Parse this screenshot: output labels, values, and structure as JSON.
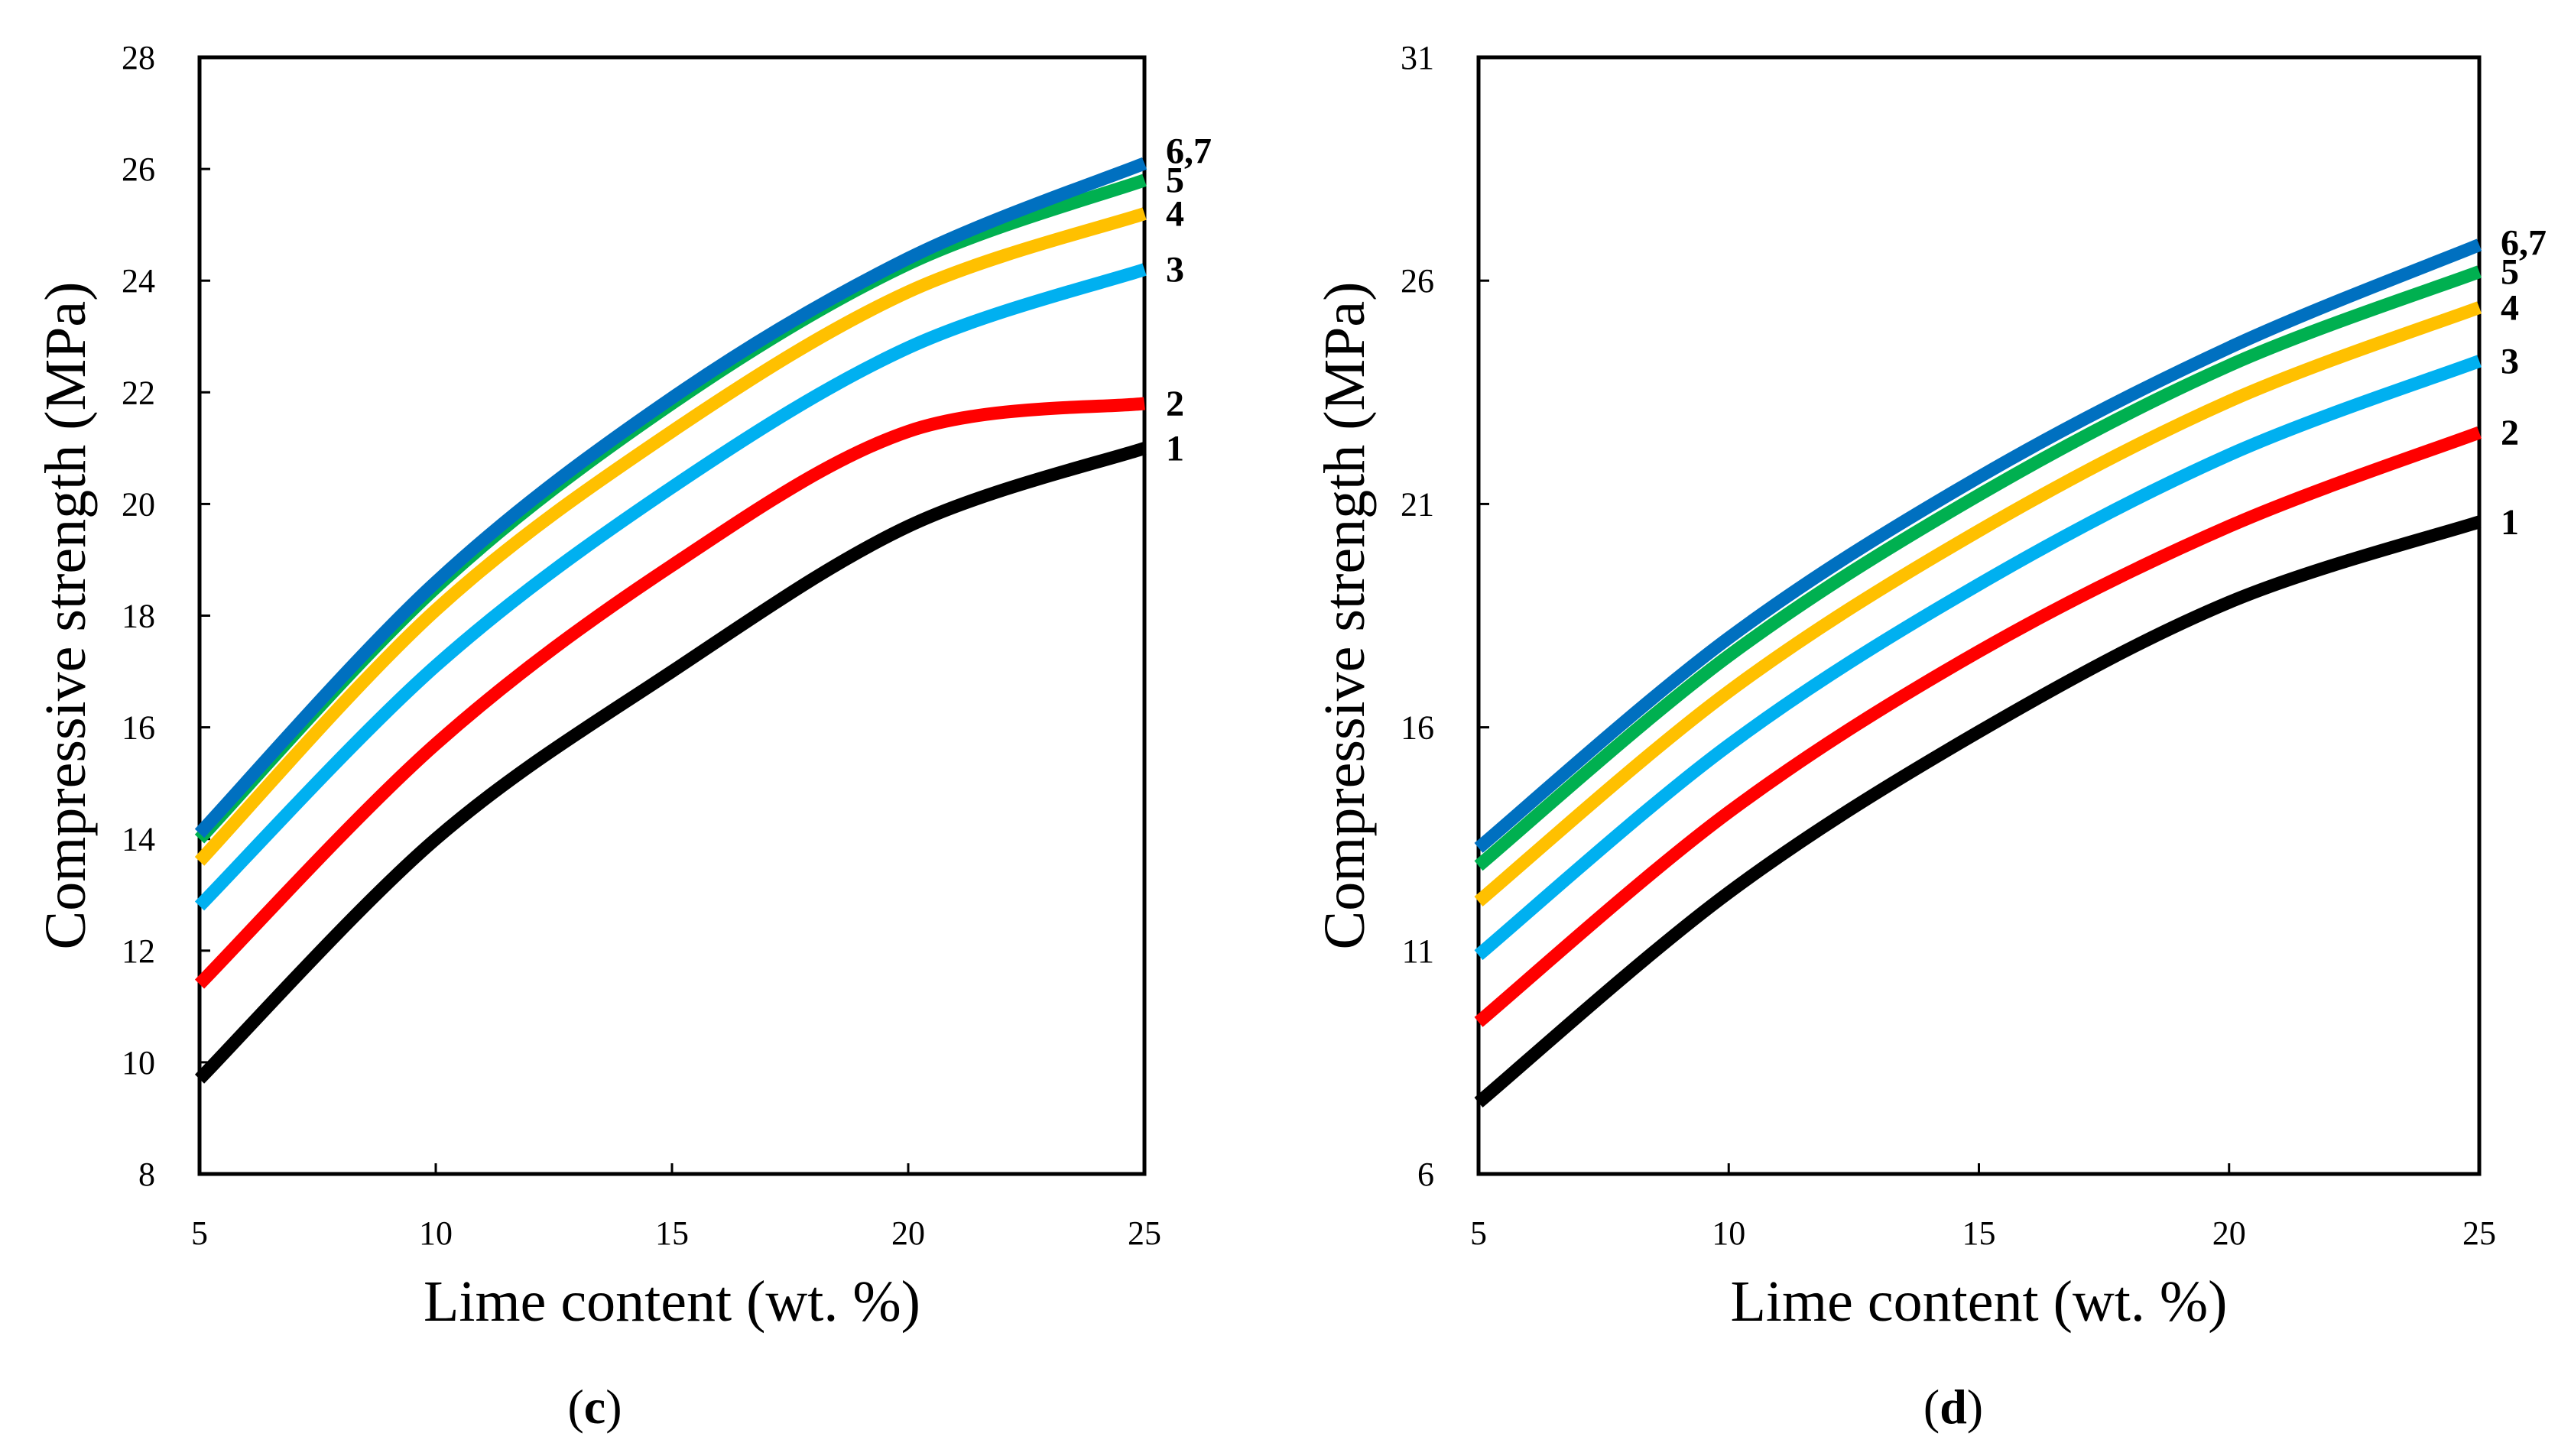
{
  "chart_data": [
    {
      "type": "line",
      "panel_label": "c",
      "xlabel": "Lime content (wt. %)",
      "ylabel": "Compressive strength (MPa)",
      "xlim": [
        5,
        25
      ],
      "ylim": [
        8,
        28
      ],
      "x_ticks": [
        5,
        10,
        15,
        20,
        25
      ],
      "y_ticks": [
        8,
        10,
        12,
        14,
        16,
        18,
        20,
        22,
        24,
        26,
        28
      ],
      "grid": false,
      "x": [
        5,
        10,
        15,
        20,
        25
      ],
      "series": [
        {
          "end_label": "1",
          "color": "#000000",
          "values": [
            9.7,
            14.0,
            17.0,
            19.6,
            21.0
          ]
        },
        {
          "end_label": "2",
          "color": "#ff0000",
          "values": [
            11.4,
            15.7,
            18.9,
            21.3,
            21.8
          ]
        },
        {
          "end_label": "3",
          "color": "#00b0f0",
          "values": [
            12.8,
            17.1,
            20.3,
            22.8,
            24.2
          ]
        },
        {
          "end_label": "4",
          "color": "#ffc000",
          "values": [
            13.6,
            18.1,
            21.3,
            23.8,
            25.2
          ]
        },
        {
          "end_label": "5",
          "color": "#00b050",
          "values": [
            14.0,
            18.5,
            21.8,
            24.3,
            25.8
          ]
        },
        {
          "end_label": "6,7",
          "color": "#0070c0",
          "values": [
            14.1,
            18.6,
            21.9,
            24.4,
            26.1
          ]
        }
      ]
    },
    {
      "type": "line",
      "panel_label": "d",
      "xlabel": "Lime content (wt. %)",
      "ylabel": "Compressive strength (MPa)",
      "xlim": [
        5,
        25
      ],
      "ylim": [
        6,
        31
      ],
      "x_ticks": [
        5,
        10,
        15,
        20,
        25
      ],
      "y_ticks": [
        6,
        11,
        16,
        21,
        26,
        31
      ],
      "grid": false,
      "x": [
        5,
        10,
        15,
        20,
        25
      ],
      "series": [
        {
          "end_label": "1",
          "color": "#000000",
          "values": [
            7.6,
            12.3,
            15.9,
            18.8,
            20.6
          ]
        },
        {
          "end_label": "2",
          "color": "#ff0000",
          "values": [
            9.4,
            14.1,
            17.7,
            20.5,
            22.6
          ]
        },
        {
          "end_label": "3",
          "color": "#00b0f0",
          "values": [
            10.9,
            15.6,
            19.2,
            22.1,
            24.2
          ]
        },
        {
          "end_label": "4",
          "color": "#ffc000",
          "values": [
            12.1,
            16.8,
            20.4,
            23.3,
            25.4
          ]
        },
        {
          "end_label": "5",
          "color": "#00b050",
          "values": [
            12.9,
            17.6,
            21.2,
            24.1,
            26.2
          ]
        },
        {
          "end_label": "6,7",
          "color": "#0070c0",
          "values": [
            13.3,
            18.0,
            21.6,
            24.5,
            26.8
          ]
        }
      ]
    }
  ]
}
